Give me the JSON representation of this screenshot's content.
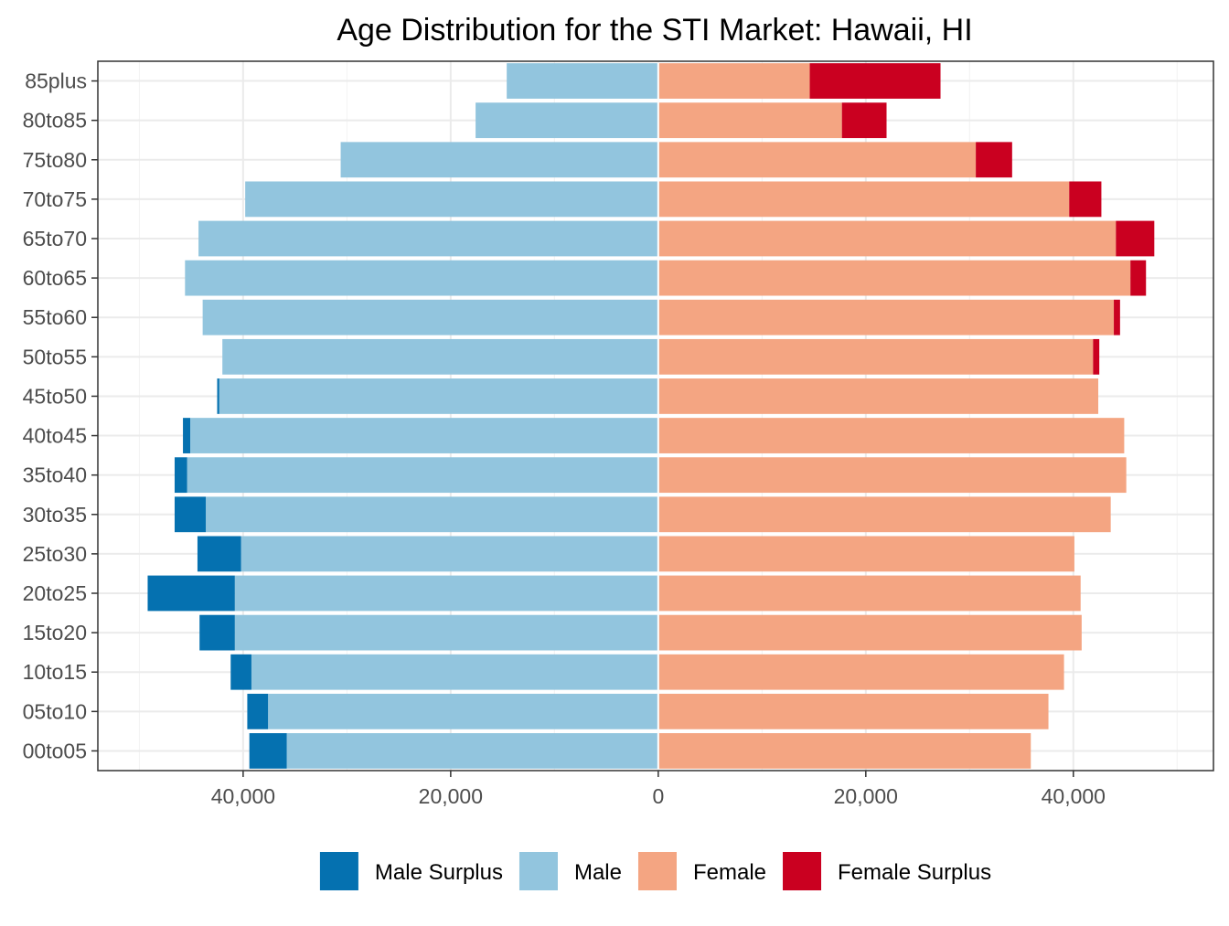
{
  "chart_data": {
    "type": "bar",
    "orientation": "horizontal-diverging",
    "title": "Age Distribution for the STI Market: Hawaii, HI",
    "xlabel": "",
    "ylabel": "",
    "xlim": [
      -54000,
      53500
    ],
    "x_ticks": [
      -40000,
      -20000,
      0,
      20000,
      40000
    ],
    "x_tick_labels": [
      "40,000",
      "20,000",
      "0",
      "20,000",
      "40,000"
    ],
    "grid": true,
    "legend_position": "bottom",
    "categories": [
      "00to05",
      "05to10",
      "10to15",
      "15to20",
      "20to25",
      "25to30",
      "30to35",
      "35to40",
      "40to45",
      "45to50",
      "50to55",
      "55to60",
      "60to65",
      "65to70",
      "70to75",
      "75to80",
      "80to85",
      "85plus"
    ],
    "series": [
      {
        "name": "Male Surplus",
        "color": "#0571b0",
        "values": [
          3600,
          2000,
          2000,
          3400,
          8400,
          4200,
          3000,
          1200,
          700,
          200,
          0,
          0,
          0,
          0,
          0,
          0,
          0,
          0
        ]
      },
      {
        "name": "Male",
        "color": "#92c5de",
        "values": [
          35800,
          37600,
          39200,
          40800,
          40800,
          40200,
          43600,
          45400,
          45100,
          42300,
          42000,
          43900,
          45600,
          44300,
          39800,
          30600,
          17600,
          14600
        ]
      },
      {
        "name": "Female",
        "color": "#f4a582",
        "values": [
          35900,
          37600,
          39100,
          40800,
          40700,
          40100,
          43600,
          45100,
          44900,
          42400,
          41900,
          43900,
          45500,
          44100,
          39600,
          30600,
          17700,
          14600
        ]
      },
      {
        "name": "Female Surplus",
        "color": "#ca0020",
        "values": [
          0,
          0,
          0,
          0,
          0,
          0,
          0,
          0,
          0,
          0,
          600,
          600,
          1500,
          3700,
          3100,
          3500,
          4300,
          12600
        ]
      }
    ]
  }
}
